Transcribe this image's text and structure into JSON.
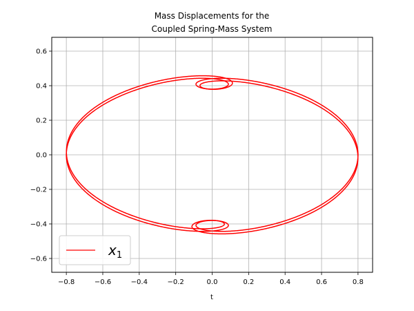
{
  "chart_data": {
    "type": "line",
    "title_lines": [
      "Mass Displacements for the",
      "Coupled Spring-Mass System"
    ],
    "xlabel": "t",
    "ylabel": "",
    "xlim": [
      -0.88,
      0.88
    ],
    "ylim": [
      -0.68,
      0.68
    ],
    "xticks": [
      -0.8,
      -0.6,
      -0.4,
      -0.2,
      0.0,
      0.2,
      0.4,
      0.6,
      0.8
    ],
    "xtick_labels": [
      "−0.8",
      "−0.6",
      "−0.4",
      "−0.2",
      "0.0",
      "0.2",
      "0.4",
      "0.6",
      "0.8"
    ],
    "yticks": [
      -0.6,
      -0.4,
      -0.2,
      0.0,
      0.2,
      0.4,
      0.6
    ],
    "ytick_labels": [
      "−0.6",
      "−0.4",
      "−0.2",
      "0.0",
      "0.2",
      "0.4",
      "0.6"
    ],
    "grid": true,
    "legend_position": "lower-left",
    "series": [
      {
        "name": "x",
        "name_subscript": "1",
        "color": "#ff0000",
        "curve_model": {
          "x_terms": [
            [
              0.5,
              1
            ],
            [
              0.3,
              3
            ]
          ],
          "y_terms": [
            [
              0.5,
              1
            ],
            [
              0.12,
              3
            ]
          ],
          "t_range": [
            0,
            6.2832
          ],
          "phase_variation_deg": 8
        }
      }
    ]
  }
}
